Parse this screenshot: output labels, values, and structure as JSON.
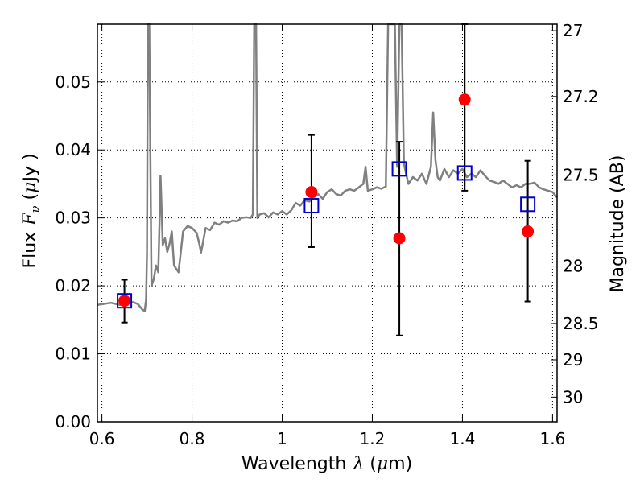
{
  "chart_data": {
    "type": "scatter",
    "xlabel": "Wavelength",
    "xlabel_symbol": "λ",
    "xlabel_unit_open": " (",
    "xlabel_unit_mu": "μ",
    "xlabel_unit_rest": "m)",
    "ylabel": "Flux",
    "ylabel_symbol": "F",
    "ylabel_symbol_sub": "ν",
    "ylabel_unit_open": " (",
    "ylabel_unit_mu": "μ",
    "ylabel_unit_rest": "Jy )",
    "y2label": "Magnitude (AB)",
    "xlim": [
      0.59,
      1.61
    ],
    "ylim": [
      0.0,
      0.0585
    ],
    "grid": true,
    "x_ticks": [
      0.6,
      0.8,
      1.0,
      1.2,
      1.4,
      1.6
    ],
    "x_tick_labels": [
      "0.6",
      "0.8",
      "1",
      "1.2",
      "1.4",
      "1.6"
    ],
    "y_ticks": [
      0.0,
      0.01,
      0.02,
      0.03,
      0.04,
      0.05
    ],
    "y_tick_labels": [
      "0.00",
      "0.01",
      "0.02",
      "0.03",
      "0.04",
      "0.05"
    ],
    "y2_ticks": [
      27,
      27.2,
      27.5,
      28,
      28.5,
      29,
      30
    ],
    "y2_tick_labels": [
      "27",
      "27.2",
      "27.5",
      "28",
      "28.5",
      "29",
      "30"
    ],
    "colors": {
      "model": "#808080",
      "observed": "#ff0000",
      "synthetic": "#0000cc",
      "errorbar": "#000000"
    },
    "series": [
      {
        "kind": "model_spectrum",
        "x": [
          0.59,
          0.6,
          0.62,
          0.64,
          0.66,
          0.67,
          0.68,
          0.69,
          0.695,
          0.698,
          0.7,
          0.702,
          0.705,
          0.71,
          0.715,
          0.72,
          0.725,
          0.728,
          0.73,
          0.735,
          0.74,
          0.745,
          0.75,
          0.755,
          0.76,
          0.77,
          0.78,
          0.79,
          0.8,
          0.81,
          0.815,
          0.82,
          0.83,
          0.84,
          0.85,
          0.86,
          0.87,
          0.88,
          0.89,
          0.9,
          0.91,
          0.92,
          0.93,
          0.935,
          0.938,
          0.94,
          0.942,
          0.945,
          0.95,
          0.96,
          0.97,
          0.98,
          0.99,
          1.0,
          1.01,
          1.02,
          1.03,
          1.04,
          1.05,
          1.06,
          1.07,
          1.08,
          1.09,
          1.1,
          1.11,
          1.12,
          1.13,
          1.14,
          1.15,
          1.16,
          1.17,
          1.18,
          1.185,
          1.19,
          1.2,
          1.21,
          1.22,
          1.23,
          1.235,
          1.24,
          1.25,
          1.255,
          1.26,
          1.265,
          1.27,
          1.28,
          1.29,
          1.3,
          1.31,
          1.32,
          1.33,
          1.335,
          1.34,
          1.345,
          1.35,
          1.36,
          1.37,
          1.38,
          1.39,
          1.4,
          1.41,
          1.42,
          1.43,
          1.44,
          1.45,
          1.46,
          1.47,
          1.48,
          1.49,
          1.5,
          1.51,
          1.52,
          1.53,
          1.54,
          1.55,
          1.56,
          1.57,
          1.58,
          1.59,
          1.6,
          1.61
        ],
        "y": [
          0.0172,
          0.0173,
          0.0175,
          0.0172,
          0.0175,
          0.0176,
          0.0173,
          0.0165,
          0.0163,
          0.018,
          0.025,
          0.06,
          0.06,
          0.02,
          0.021,
          0.023,
          0.022,
          0.03,
          0.0362,
          0.026,
          0.027,
          0.025,
          0.0262,
          0.028,
          0.023,
          0.022,
          0.028,
          0.0288,
          0.0285,
          0.0278,
          0.0265,
          0.0249,
          0.0285,
          0.0282,
          0.0293,
          0.029,
          0.0295,
          0.0293,
          0.0296,
          0.0295,
          0.03,
          0.0301,
          0.03,
          0.0305,
          0.06,
          0.06,
          0.06,
          0.03,
          0.0305,
          0.0307,
          0.0301,
          0.0308,
          0.0305,
          0.031,
          0.0305,
          0.0311,
          0.0322,
          0.0318,
          0.0326,
          0.0324,
          0.033,
          0.0335,
          0.0328,
          0.0338,
          0.0342,
          0.0335,
          0.0333,
          0.034,
          0.0342,
          0.034,
          0.0345,
          0.035,
          0.0375,
          0.034,
          0.0342,
          0.0345,
          0.0343,
          0.0346,
          0.06,
          0.06,
          0.06,
          0.0375,
          0.06,
          0.06,
          0.038,
          0.035,
          0.036,
          0.0355,
          0.0365,
          0.035,
          0.0375,
          0.0455,
          0.0385,
          0.036,
          0.0355,
          0.0372,
          0.036,
          0.037,
          0.0365,
          0.0372,
          0.036,
          0.0365,
          0.036,
          0.037,
          0.0362,
          0.0355,
          0.0353,
          0.035,
          0.0355,
          0.035,
          0.0345,
          0.0348,
          0.0345,
          0.035,
          0.035,
          0.0352,
          0.0345,
          0.0342,
          0.034,
          0.0338,
          0.033
        ]
      },
      {
        "kind": "observed",
        "marker": "filled-circle",
        "x": [
          0.65,
          1.065,
          1.26,
          1.405,
          1.545
        ],
        "y": [
          0.0178,
          0.0338,
          0.027,
          0.0474,
          0.028
        ],
        "yerr_low": [
          0.0146,
          0.0257,
          0.0127,
          0.034,
          0.0177
        ],
        "yerr_high": [
          0.0209,
          0.0422,
          0.0412,
          0.059,
          0.0384
        ]
      },
      {
        "kind": "synthetic",
        "marker": "open-square",
        "x": [
          0.65,
          1.065,
          1.26,
          1.405,
          1.545
        ],
        "y": [
          0.0178,
          0.0318,
          0.0372,
          0.0366,
          0.032
        ]
      }
    ]
  }
}
